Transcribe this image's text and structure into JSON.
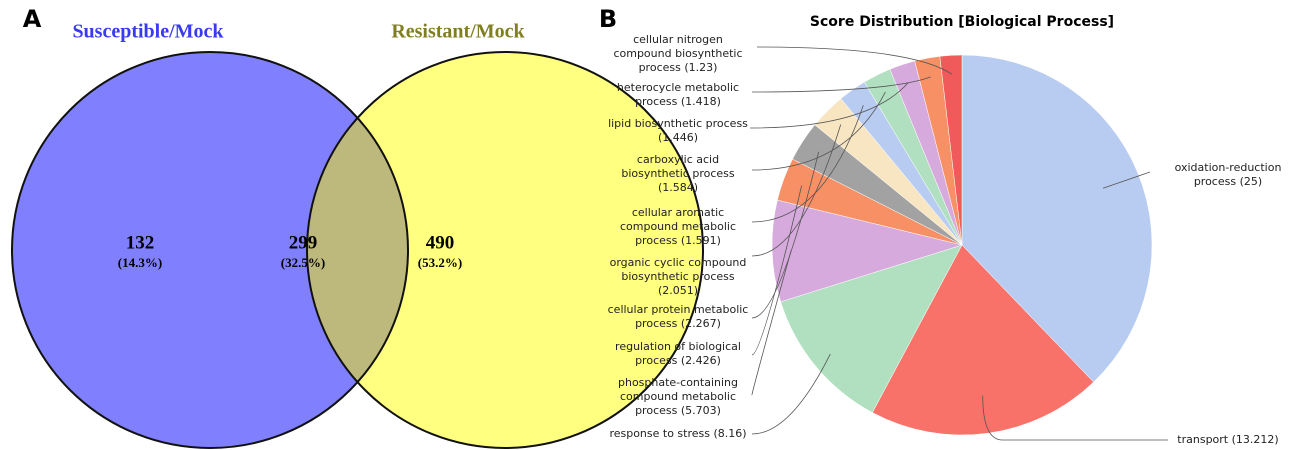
{
  "chart_data": [
    {
      "type": "venn",
      "panel": "A",
      "sets": [
        {
          "name": "Susceptible/Mock",
          "color": "#8080ff",
          "label_color": "#3a3af0"
        },
        {
          "name": "Resistant/Mock",
          "color": "#ffff80",
          "label_color": "#7f7f22"
        }
      ],
      "overlap_color": "#bdb87c",
      "values": [
        132,
        299,
        490
      ],
      "shares": [
        14.3,
        32.5,
        53.2
      ],
      "share_labels": [
        "(14.3%)",
        "(32.5%)",
        "(53.2%)"
      ]
    },
    {
      "type": "pie",
      "panel": "B",
      "title": "Score Distribution [Biological Process]",
      "categories": [
        [
          "oxidation-reduction",
          "process (25)"
        ],
        [
          "transport (13.212)"
        ],
        [
          "response to stress (8.16)"
        ],
        [
          "phosphate-containing",
          "compound metabolic",
          "process (5.703)"
        ],
        [
          "regulation of biological",
          "process (2.426)"
        ],
        [
          "cellular protein metabolic",
          "process (2.267)"
        ],
        [
          "organic cyclic compound",
          "biosynthetic process",
          "(2.051)"
        ],
        [
          "cellular aromatic",
          "compound metabolic",
          "process (1.591)"
        ],
        [
          "carboxylic acid",
          "biosynthetic process",
          "(1.584)"
        ],
        [
          "lipid biosynthetic process",
          "(1.446)"
        ],
        [
          "heterocycle metabolic",
          "process (1.418)"
        ],
        [
          "cellular nitrogen",
          "compound biosynthetic",
          "process (1.23)"
        ]
      ],
      "values": [
        25,
        13.212,
        8.16,
        5.703,
        2.426,
        2.267,
        2.051,
        1.591,
        1.584,
        1.446,
        1.418,
        1.23
      ],
      "colors": [
        "#b8cbf0",
        "#f8726a",
        "#b0e0c0",
        "#d6aadc",
        "#f79064",
        "#a2a2a2",
        "#f8e6c2",
        "#b8cbf0",
        "#b0e0c0",
        "#d6aadc",
        "#f79064",
        "#f05a5a"
      ]
    }
  ]
}
